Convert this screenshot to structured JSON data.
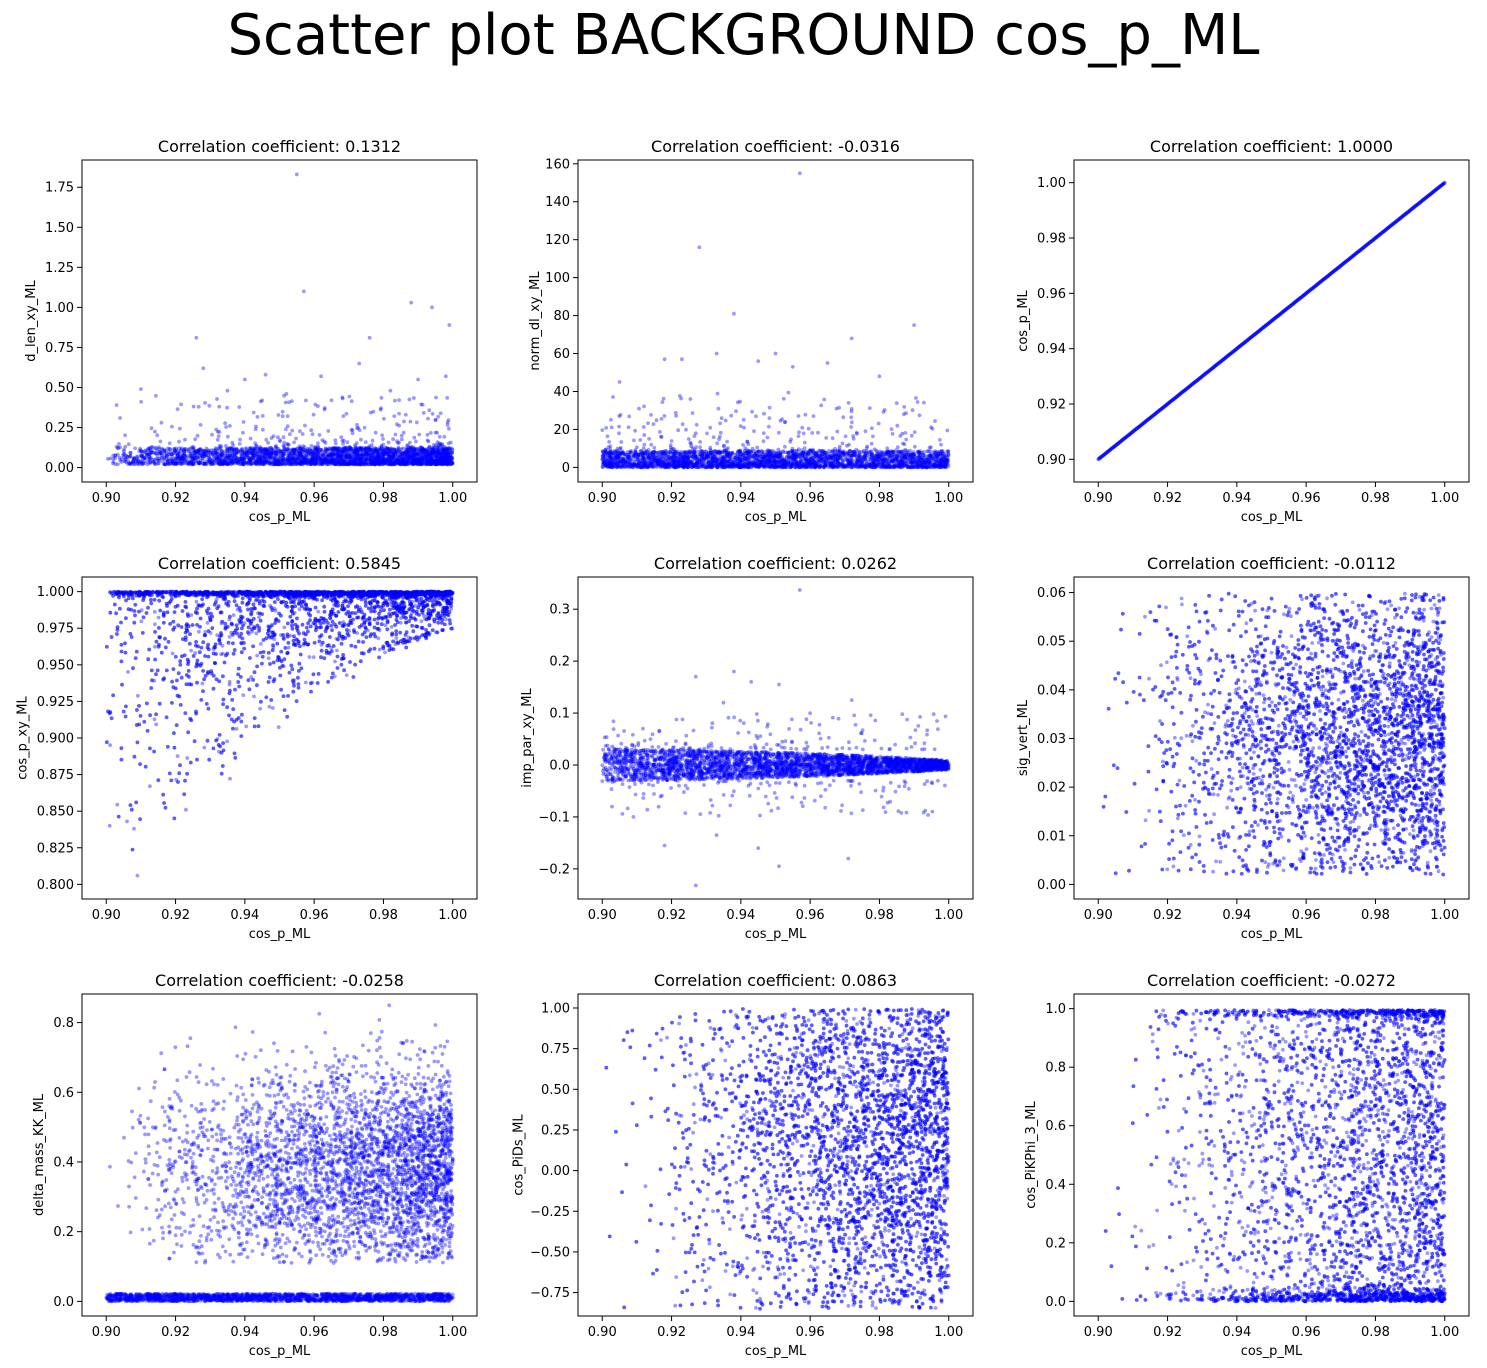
{
  "page": {
    "suptitle": "Scatter plot BACKGROUND cos_p_ML"
  },
  "style": {
    "marker_color": "#0000ff",
    "marker_alpha": 0.4
  },
  "chart_data": [
    {
      "type": "scatter",
      "title": "Correlation coefficient: 0.1312",
      "xlabel": "cos_p_ML",
      "ylabel": "d_len_xy_ML",
      "xlim": [
        0.893,
        1.007
      ],
      "ylim": [
        -0.09,
        1.92
      ],
      "xticks": [
        0.9,
        0.92,
        0.94,
        0.96,
        0.98,
        1.0
      ],
      "xtick_labels": [
        "0.90",
        "0.92",
        "0.94",
        "0.96",
        "0.98",
        "1.00"
      ],
      "yticks": [
        0.0,
        0.25,
        0.5,
        0.75,
        1.0,
        1.25,
        1.5,
        1.75
      ],
      "ytick_labels": [
        "0.00",
        "0.25",
        "0.50",
        "0.75",
        "1.00",
        "1.25",
        "1.50",
        "1.75"
      ],
      "pattern": "band_outliers",
      "band": [
        0.02,
        0.12
      ],
      "density_slope": 0.6,
      "outliers": [
        [
          0.955,
          1.83
        ],
        [
          0.957,
          1.1
        ],
        [
          0.988,
          1.03
        ],
        [
          0.994,
          1.0
        ],
        [
          0.999,
          0.89
        ],
        [
          0.926,
          0.81
        ],
        [
          0.976,
          0.81
        ],
        [
          0.973,
          0.65
        ],
        [
          0.928,
          0.62
        ],
        [
          0.91,
          0.49
        ],
        [
          0.903,
          0.39
        ],
        [
          0.94,
          0.55
        ],
        [
          0.946,
          0.58
        ],
        [
          0.962,
          0.57
        ],
        [
          0.99,
          0.55
        ],
        [
          0.998,
          0.57
        ],
        [
          0.935,
          0.48
        ],
        [
          0.952,
          0.46
        ],
        [
          0.982,
          0.48
        ],
        [
          0.965,
          0.42
        ]
      ],
      "scatter_n": 320,
      "scatter_range": [
        0.12,
        0.45
      ]
    },
    {
      "type": "scatter",
      "title": "Correlation coefficient: -0.0316",
      "xlabel": "cos_p_ML",
      "ylabel": "norm_dl_xy_ML",
      "xlim": [
        0.893,
        1.007
      ],
      "ylim": [
        -7.7,
        162.0
      ],
      "xticks": [
        0.9,
        0.92,
        0.94,
        0.96,
        0.98,
        1.0
      ],
      "xtick_labels": [
        "0.90",
        "0.92",
        "0.94",
        "0.96",
        "0.98",
        "1.00"
      ],
      "yticks": [
        0,
        20,
        40,
        60,
        80,
        100,
        120,
        140,
        160
      ],
      "ytick_labels": [
        "0",
        "20",
        "40",
        "60",
        "80",
        "100",
        "120",
        "140",
        "160"
      ],
      "pattern": "band_outliers",
      "band": [
        0.0,
        8.5
      ],
      "density_slope": 0.0,
      "outliers": [
        [
          0.957,
          155
        ],
        [
          0.928,
          116
        ],
        [
          0.938,
          81
        ],
        [
          0.99,
          75
        ],
        [
          0.972,
          68
        ],
        [
          0.933,
          60
        ],
        [
          0.923,
          57
        ],
        [
          0.95,
          60
        ],
        [
          0.945,
          56
        ],
        [
          0.965,
          55
        ],
        [
          0.955,
          53
        ],
        [
          0.905,
          45
        ],
        [
          0.98,
          48
        ],
        [
          0.918,
          57
        ]
      ],
      "scatter_n": 300,
      "scatter_range": [
        8.5,
        40
      ]
    },
    {
      "type": "scatter",
      "title": "Correlation coefficient: 1.0000",
      "xlabel": "cos_p_ML",
      "ylabel": "cos_p_ML",
      "xlim": [
        0.893,
        1.007
      ],
      "ylim": [
        0.8918,
        1.0082
      ],
      "xticks": [
        0.9,
        0.92,
        0.94,
        0.96,
        0.98,
        1.0
      ],
      "xtick_labels": [
        "0.90",
        "0.92",
        "0.94",
        "0.96",
        "0.98",
        "1.00"
      ],
      "yticks": [
        0.9,
        0.92,
        0.94,
        0.96,
        0.98,
        1.0
      ],
      "ytick_labels": [
        "0.90",
        "0.92",
        "0.94",
        "0.96",
        "0.98",
        "1.00"
      ],
      "pattern": "identity"
    },
    {
      "type": "scatter",
      "title": "Correlation coefficient: 0.5845",
      "xlabel": "cos_p_ML",
      "ylabel": "cos_p_xy_ML",
      "xlim": [
        0.893,
        1.007
      ],
      "ylim": [
        0.79,
        1.01
      ],
      "xticks": [
        0.9,
        0.92,
        0.94,
        0.96,
        0.98,
        1.0
      ],
      "xtick_labels": [
        "0.90",
        "0.92",
        "0.94",
        "0.96",
        "0.98",
        "1.00"
      ],
      "yticks": [
        0.8,
        0.825,
        0.85,
        0.875,
        0.9,
        0.925,
        0.95,
        0.975,
        1.0
      ],
      "ytick_labels": [
        "0.800",
        "0.825",
        "0.850",
        "0.875",
        "0.900",
        "0.925",
        "0.950",
        "0.975",
        "1.000"
      ],
      "pattern": "wedge",
      "outliers": [
        [
          0.909,
          0.806
        ],
        [
          0.901,
          0.84
        ],
        [
          0.906,
          0.843
        ],
        [
          0.908,
          0.838
        ],
        [
          0.923,
          0.851
        ]
      ]
    },
    {
      "type": "scatter",
      "title": "Correlation coefficient: 0.0262",
      "xlabel": "cos_p_ML",
      "ylabel": "imp_par_xy_ML",
      "xlim": [
        0.893,
        1.007
      ],
      "ylim": [
        -0.258,
        0.362
      ],
      "xticks": [
        0.9,
        0.92,
        0.94,
        0.96,
        0.98,
        1.0
      ],
      "xtick_labels": [
        "0.90",
        "0.92",
        "0.94",
        "0.96",
        "0.98",
        "1.00"
      ],
      "yticks": [
        -0.2,
        -0.1,
        0.0,
        0.1,
        0.2,
        0.3
      ],
      "ytick_labels": [
        "−0.2",
        "−0.1",
        "0.0",
        "0.1",
        "0.2",
        "0.3"
      ],
      "pattern": "taper_band",
      "band_half": 0.03,
      "outliers": [
        [
          0.957,
          0.337
        ],
        [
          0.938,
          0.18
        ],
        [
          0.927,
          0.17
        ],
        [
          0.943,
          0.16
        ],
        [
          0.951,
          0.155
        ],
        [
          0.972,
          0.125
        ],
        [
          0.927,
          -0.232
        ],
        [
          0.951,
          -0.195
        ],
        [
          0.971,
          -0.18
        ],
        [
          0.945,
          -0.16
        ],
        [
          0.918,
          -0.155
        ],
        [
          0.933,
          -0.135
        ],
        [
          0.909,
          -0.1
        ],
        [
          0.935,
          0.12
        ],
        [
          0.96,
          0.1
        ]
      ],
      "scatter_n": 260,
      "scatter_range": [
        0.03,
        0.1
      ]
    },
    {
      "type": "scatter",
      "title": "Correlation coefficient: -0.0112",
      "xlabel": "cos_p_ML",
      "ylabel": "sig_vert_ML",
      "xlim": [
        0.893,
        1.007
      ],
      "ylim": [
        -0.003,
        0.0632
      ],
      "xticks": [
        0.9,
        0.92,
        0.94,
        0.96,
        0.98,
        1.0
      ],
      "xtick_labels": [
        "0.90",
        "0.92",
        "0.94",
        "0.96",
        "0.98",
        "1.00"
      ],
      "yticks": [
        0.0,
        0.01,
        0.02,
        0.03,
        0.04,
        0.05,
        0.06
      ],
      "ytick_labels": [
        "0.00",
        "0.01",
        "0.02",
        "0.03",
        "0.04",
        "0.05",
        "0.06"
      ],
      "pattern": "uniform",
      "yrange": [
        0.002,
        0.0598
      ],
      "cluster": [
        0.029,
        0.012
      ],
      "density_slope": 1.4
    },
    {
      "type": "scatter",
      "title": "Correlation coefficient: -0.0258",
      "xlabel": "cos_p_ML",
      "ylabel": "delta_mass_KK_ML",
      "xlim": [
        0.893,
        1.007
      ],
      "ylim": [
        -0.042,
        0.882
      ],
      "xticks": [
        0.9,
        0.92,
        0.94,
        0.96,
        0.98,
        1.0
      ],
      "xtick_labels": [
        "0.90",
        "0.92",
        "0.94",
        "0.96",
        "0.98",
        "1.00"
      ],
      "yticks": [
        0.0,
        0.2,
        0.4,
        0.6,
        0.8
      ],
      "ytick_labels": [
        "0.0",
        "0.2",
        "0.4",
        "0.6",
        "0.8"
      ],
      "pattern": "two_band",
      "band": [
        0.0,
        0.022
      ],
      "cluster": [
        0.38,
        0.14
      ],
      "yrange": [
        0.11,
        0.85
      ],
      "density_slope": 1.2
    },
    {
      "type": "scatter",
      "title": "Correlation coefficient: 0.0863",
      "xlabel": "cos_p_ML",
      "ylabel": "cos_PiDs_ML",
      "xlim": [
        0.893,
        1.007
      ],
      "ylim": [
        -0.894,
        1.086
      ],
      "xticks": [
        0.9,
        0.92,
        0.94,
        0.96,
        0.98,
        1.0
      ],
      "xtick_labels": [
        "0.90",
        "0.92",
        "0.94",
        "0.96",
        "0.98",
        "1.00"
      ],
      "yticks": [
        -0.75,
        -0.5,
        -0.25,
        0.0,
        0.25,
        0.5,
        0.75,
        1.0
      ],
      "ytick_labels": [
        "−0.75",
        "−0.50",
        "−0.25",
        "0.00",
        "0.25",
        "0.50",
        "0.75",
        "1.00"
      ],
      "pattern": "uniform",
      "yrange": [
        -0.85,
        0.995
      ],
      "cluster": [
        0.25,
        0.5
      ],
      "density_slope": 1.6
    },
    {
      "type": "scatter",
      "title": "Correlation coefficient: -0.0272",
      "xlabel": "cos_p_ML",
      "ylabel": "cos_PiKPhi_3_ML",
      "xlim": [
        0.893,
        1.007
      ],
      "ylim": [
        -0.05,
        1.05
      ],
      "xticks": [
        0.9,
        0.92,
        0.94,
        0.96,
        0.98,
        1.0
      ],
      "xtick_labels": [
        "0.90",
        "0.92",
        "0.94",
        "0.96",
        "0.98",
        "1.00"
      ],
      "yticks": [
        0.0,
        0.2,
        0.4,
        0.6,
        0.8,
        1.0
      ],
      "ytick_labels": [
        "0.0",
        "0.2",
        "0.4",
        "0.6",
        "0.8",
        "1.0"
      ],
      "pattern": "uniform_edges",
      "yrange": [
        0.0,
        0.995
      ],
      "density_slope": 1.6
    }
  ]
}
